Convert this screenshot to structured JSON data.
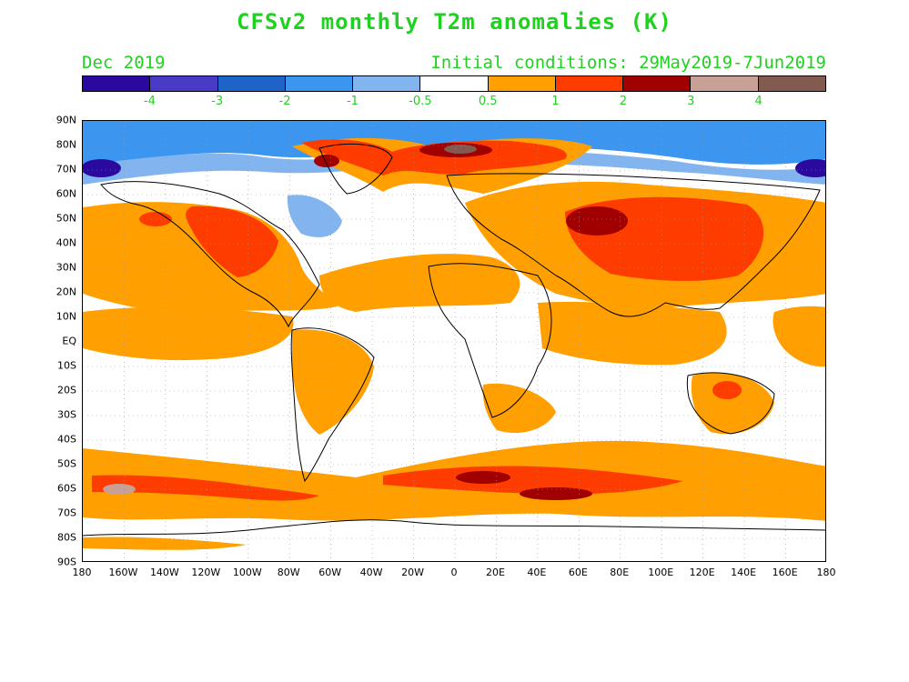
{
  "header": {
    "title": "CFSv2 monthly T2m anomalies (K)",
    "valid_month": "Dec 2019",
    "initial_conditions": "Initial conditions: 29May2019-7Jun2019"
  },
  "colorbar": {
    "colors": [
      "#2a0a9e",
      "#4a3ac8",
      "#1e64c8",
      "#3c96f0",
      "#82b4f0",
      "#ffffff",
      "#ffa000",
      "#ff3c00",
      "#a00000",
      "#c8a096",
      "#825a50"
    ],
    "labels": [
      "-4",
      "-3",
      "-2",
      "-1",
      "-0.5",
      "0.5",
      "1",
      "2",
      "3",
      "4"
    ]
  },
  "map": {
    "lat_labels": [
      "90N",
      "80N",
      "70N",
      "60N",
      "50N",
      "40N",
      "30N",
      "20N",
      "10N",
      "EQ",
      "10S",
      "20S",
      "30S",
      "40S",
      "50S",
      "60S",
      "70S",
      "80S",
      "90S"
    ],
    "lon_labels": [
      "180",
      "160W",
      "140W",
      "120W",
      "100W",
      "80W",
      "60W",
      "40W",
      "20W",
      "0",
      "20E",
      "40E",
      "60E",
      "80E",
      "100E",
      "120E",
      "140E",
      "160E",
      "180"
    ]
  }
}
